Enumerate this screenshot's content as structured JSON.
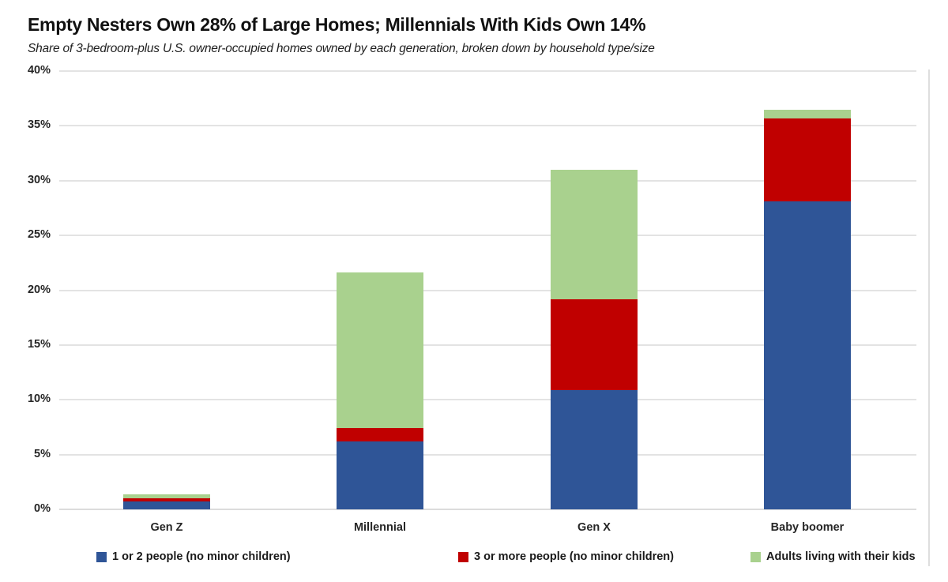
{
  "header": {
    "title": "Empty Nesters Own 28% of Large Homes; Millennials With Kids Own 14%",
    "subtitle": "Share of 3-bedroom-plus U.S. owner-occupied homes owned by each generation, broken down by household type/size"
  },
  "chart_data": {
    "type": "bar",
    "stacked": true,
    "title": "Empty Nesters Own 28% of Large Homes; Millennials With Kids Own 14%",
    "subtitle": "Share of 3-bedroom-plus U.S. owner-occupied homes owned by each generation, broken down by household type/size",
    "categories": [
      "Gen Z",
      "Millennial",
      "Gen X",
      "Baby boomer"
    ],
    "series": [
      {
        "name": "1 or 2 people (no minor children)",
        "color": "#2F5597",
        "values": [
          0.7,
          6.2,
          10.9,
          28.1
        ]
      },
      {
        "name": "3 or more people (no minor children)",
        "color": "#C00000",
        "values": [
          0.3,
          1.2,
          8.3,
          7.6
        ]
      },
      {
        "name": "Adults living with their kids",
        "color": "#A9D18E",
        "values": [
          0.4,
          14.2,
          11.8,
          0.8
        ]
      }
    ],
    "totals": [
      1.4,
      21.6,
      31.0,
      36.5
    ],
    "xlabel": "",
    "ylabel": "",
    "ylim": [
      0,
      40
    ],
    "y_tick_step": 5,
    "y_tick_suffix": "%",
    "grid": true,
    "legend_position": "bottom",
    "gridline_color": "#e3e3e3",
    "axis_text_color": "#262626"
  }
}
